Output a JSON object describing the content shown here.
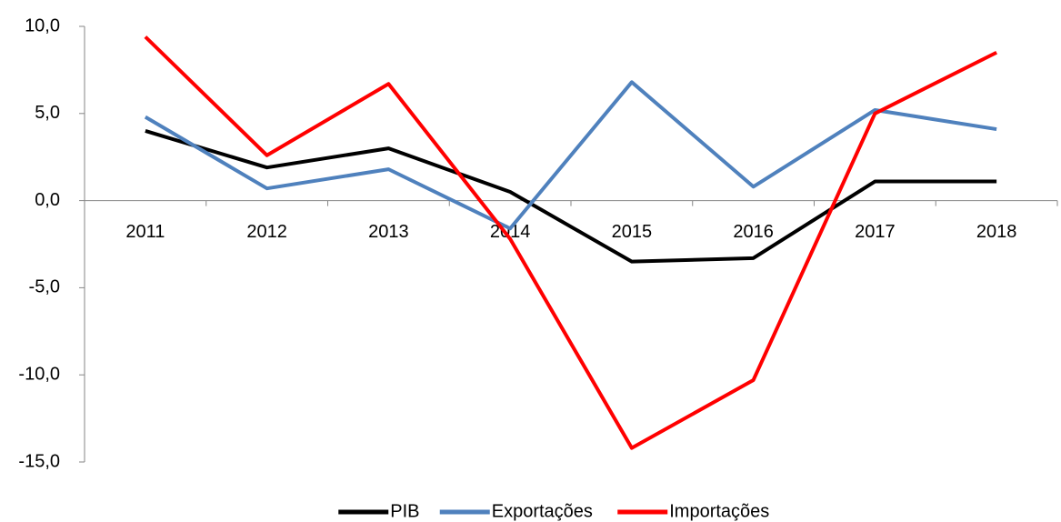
{
  "chart_data": {
    "type": "line",
    "categories": [
      "2011",
      "2012",
      "2013",
      "2014",
      "2015",
      "2016",
      "2017",
      "2018"
    ],
    "series": [
      {
        "name": "PIB",
        "color": "#000000",
        "values": [
          4.0,
          1.9,
          3.0,
          0.5,
          -3.5,
          -3.3,
          1.1,
          1.1
        ]
      },
      {
        "name": "Exportações",
        "color": "#4f81bd",
        "values": [
          4.8,
          0.7,
          1.8,
          -1.6,
          6.8,
          0.8,
          5.2,
          4.1
        ]
      },
      {
        "name": "Importações",
        "color": "#ff0000",
        "values": [
          9.4,
          2.6,
          6.7,
          -2.2,
          -14.2,
          -10.3,
          5.0,
          8.5
        ]
      }
    ],
    "ylim": [
      -15,
      10
    ],
    "yticks": [
      {
        "value": -15,
        "label": "-15,0"
      },
      {
        "value": -10,
        "label": "-10,0"
      },
      {
        "value": -5,
        "label": "-5,0"
      },
      {
        "value": 0,
        "label": "0,0"
      },
      {
        "value": 5,
        "label": "5,0"
      },
      {
        "value": 10,
        "label": "10,0"
      }
    ],
    "grid": false,
    "legend": "bottom"
  }
}
